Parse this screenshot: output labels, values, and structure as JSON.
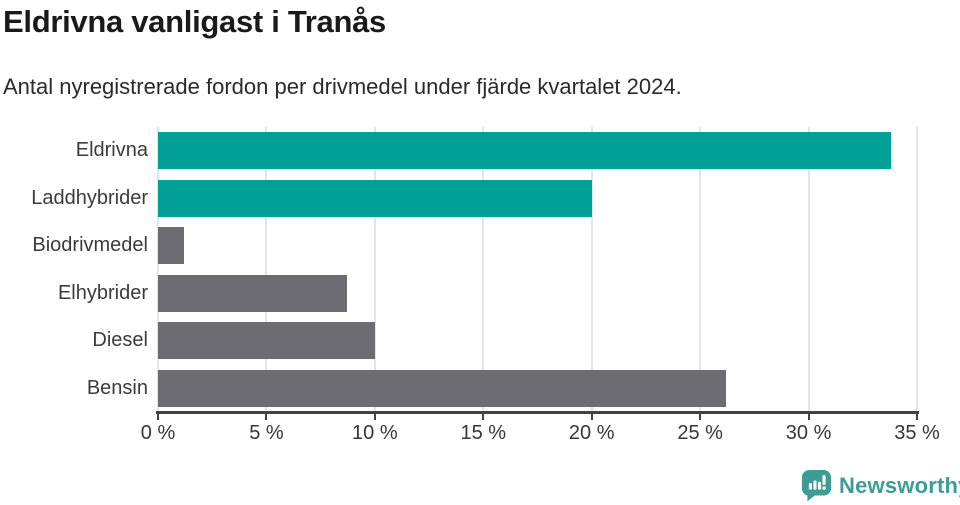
{
  "header": {
    "title": "Eldrivna vanligast i Tranås",
    "subtitle": "Antal nyregistrerade fordon per drivmedel under fjärde kvartalet 2024."
  },
  "chart_data": {
    "type": "bar",
    "orientation": "horizontal",
    "title": "Eldrivna vanligast i Tranås",
    "subtitle": "Antal nyregistrerade fordon per drivmedel under fjärde kvartalet 2024.",
    "categories": [
      "Eldrivna",
      "Laddhybrider",
      "Biodrivmedel",
      "Elhybrider",
      "Diesel",
      "Bensin"
    ],
    "values": [
      33.8,
      20.0,
      1.2,
      8.7,
      10.0,
      26.2
    ],
    "unit": "%",
    "xlabel": "",
    "ylabel": "",
    "xlim": [
      0,
      35
    ],
    "x_ticks": [
      0,
      5,
      10,
      15,
      20,
      25,
      30,
      35
    ],
    "x_tick_labels": [
      "0 %",
      "5 %",
      "10 %",
      "15 %",
      "20 %",
      "25 %",
      "30 %",
      "35 %"
    ],
    "grid": true,
    "legend": false,
    "colors": {
      "highlight": "#00a096",
      "default": "#6c6c72",
      "series_colors": [
        "#00a096",
        "#00a096",
        "#6c6c72",
        "#6c6c72",
        "#6c6c72",
        "#6c6c72"
      ],
      "gridline": "#e5e5e5",
      "axis": "#424242"
    }
  },
  "footer": {
    "brand": "Newsworthy",
    "brand_color": "#3e9c97",
    "logo_icon": "newsworthy-speech-bubble-bar-chart-icon"
  }
}
